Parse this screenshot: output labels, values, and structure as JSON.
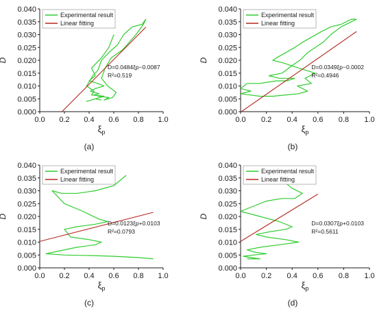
{
  "figure": {
    "legend_experimental": "Experimental result",
    "legend_linear": "Linear fitting",
    "colors": {
      "experimental": "#2ecc2e",
      "linear": "#b3261e",
      "axis": "#1a1a1a"
    }
  },
  "chart_data": [
    {
      "panel_label": "(a)",
      "type": "line",
      "xlabel": "ξp",
      "ylabel": "D",
      "xlim": [
        0.0,
        1.0
      ],
      "ylim": [
        0.0,
        0.04
      ],
      "xticks": [
        "0.0",
        "0.2",
        "0.4",
        "0.6",
        "0.8",
        "1.0"
      ],
      "yticks": [
        "0.000",
        "0.005",
        "0.010",
        "0.015",
        "0.020",
        "0.025",
        "0.030",
        "0.035",
        "0.040"
      ],
      "legend": "top-left",
      "equation": "D=0.0484ξp−0.0087",
      "r2": "R²=0.519",
      "series": [
        {
          "name": "Experimental result",
          "x": [
            0.6,
            0.56,
            0.5,
            0.42,
            0.45,
            0.4,
            0.47,
            0.52,
            0.45,
            0.41,
            0.48,
            0.44,
            0.48,
            0.56,
            0.52,
            0.59,
            0.62,
            0.55,
            0.5,
            0.53,
            0.58,
            0.67,
            0.78,
            0.84,
            0.86,
            0.83,
            0.75,
            0.68,
            0.63,
            0.56,
            0.5,
            0.47,
            0.43,
            0.38,
            0.44,
            0.42,
            0.52,
            0.45,
            0.38,
            0.45,
            0.5
          ],
          "y": [
            0.03,
            0.025,
            0.021,
            0.017,
            0.014,
            0.012,
            0.011,
            0.01,
            0.009,
            0.008,
            0.007,
            0.0065,
            0.006,
            0.0055,
            0.0045,
            0.0055,
            0.0075,
            0.01,
            0.013,
            0.017,
            0.021,
            0.024,
            0.03,
            0.034,
            0.036,
            0.034,
            0.033,
            0.03,
            0.026,
            0.023,
            0.02,
            0.016,
            0.014,
            0.01,
            0.008,
            0.0065,
            0.006,
            0.005,
            0.004,
            0.005,
            0.0045
          ]
        },
        {
          "name": "Linear fitting",
          "x": [
            0.18,
            0.86
          ],
          "y": [
            0.0,
            0.0329
          ]
        }
      ]
    },
    {
      "panel_label": "(b)",
      "type": "line",
      "xlabel": "ξp",
      "ylabel": "D",
      "xlim": [
        0.0,
        1.0
      ],
      "ylim": [
        0.0,
        0.04
      ],
      "xticks": [
        "0.0",
        "0.2",
        "0.4",
        "0.6",
        "0.8",
        "1.0"
      ],
      "yticks": [
        "0.000",
        "0.005",
        "0.010",
        "0.015",
        "0.020",
        "0.025",
        "0.030",
        "0.035",
        "0.040"
      ],
      "legend": "top-left",
      "equation": "D=0.0349ξp−0.0002",
      "r2": "R²=0.4946",
      "series": [
        {
          "name": "Experimental result",
          "x": [
            0.9,
            0.86,
            0.78,
            0.7,
            0.64,
            0.58,
            0.52,
            0.46,
            0.4,
            0.35,
            0.32,
            0.22,
            0.3,
            0.42,
            0.36,
            0.28,
            0.15,
            0.05,
            0.0,
            0.08,
            0.0,
            0.15,
            0.25,
            0.35,
            0.45,
            0.52,
            0.44,
            0.55,
            0.5,
            0.58,
            0.45,
            0.33,
            0.25,
            0.28,
            0.35,
            0.42,
            0.48,
            0.55,
            0.62,
            0.7,
            0.78,
            0.86,
            0.9
          ],
          "y": [
            0.036,
            0.035,
            0.033,
            0.03,
            0.027,
            0.025,
            0.023,
            0.02,
            0.018,
            0.016,
            0.015,
            0.014,
            0.013,
            0.013,
            0.012,
            0.012,
            0.011,
            0.011,
            0.009,
            0.008,
            0.007,
            0.006,
            0.006,
            0.0065,
            0.007,
            0.008,
            0.01,
            0.011,
            0.013,
            0.015,
            0.017,
            0.019,
            0.02,
            0.021,
            0.023,
            0.025,
            0.027,
            0.029,
            0.031,
            0.033,
            0.034,
            0.036,
            0.036
          ]
        },
        {
          "name": "Linear fitting",
          "x": [
            0.0,
            0.9
          ],
          "y": [
            -0.0002,
            0.0312
          ]
        }
      ]
    },
    {
      "panel_label": "(c)",
      "type": "line",
      "xlabel": "ξp",
      "ylabel": "D",
      "xlim": [
        0.0,
        1.0
      ],
      "ylim": [
        0.0,
        0.04
      ],
      "xticks": [
        "0.0",
        "0.2",
        "0.4",
        "0.6",
        "0.8",
        "1.0"
      ],
      "yticks": [
        "0.000",
        "0.005",
        "0.010",
        "0.015",
        "0.020",
        "0.025",
        "0.030",
        "0.035",
        "0.040"
      ],
      "legend": "top-left",
      "equation": "D=0.0123ξp+0.0103",
      "r2": "R²=0.0793",
      "series": [
        {
          "name": "Experimental result",
          "x": [
            0.7,
            0.6,
            0.45,
            0.3,
            0.18,
            0.1,
            0.2,
            0.35,
            0.48,
            0.55,
            0.45,
            0.3,
            0.2,
            0.25,
            0.4,
            0.5,
            0.45,
            0.3,
            0.15,
            0.05,
            0.2,
            0.4,
            0.6,
            0.8,
            0.92
          ],
          "y": [
            0.036,
            0.032,
            0.03,
            0.029,
            0.029,
            0.03,
            0.025,
            0.022,
            0.019,
            0.018,
            0.017,
            0.016,
            0.015,
            0.012,
            0.011,
            0.01,
            0.009,
            0.008,
            0.0065,
            0.0055,
            0.005,
            0.0048,
            0.0045,
            0.004,
            0.0035
          ]
        },
        {
          "name": "Linear fitting",
          "x": [
            0.0,
            0.92
          ],
          "y": [
            0.0103,
            0.0216
          ]
        }
      ]
    },
    {
      "panel_label": "(d)",
      "type": "line",
      "xlabel": "ξp",
      "ylabel": "D",
      "xlim": [
        0.0,
        1.0
      ],
      "ylim": [
        0.0,
        0.04
      ],
      "xticks": [
        "0.0",
        "0.2",
        "0.4",
        "0.6",
        "0.8",
        "1.0"
      ],
      "yticks": [
        "0.000",
        "0.005",
        "0.010",
        "0.015",
        "0.020",
        "0.025",
        "0.030",
        "0.035",
        "0.040"
      ],
      "legend": "top-left",
      "equation": "D=0.0307ξp+0.0103",
      "r2": "R²=0.5611",
      "series": [
        {
          "name": "Experimental result",
          "x": [
            0.5,
            0.4,
            0.35,
            0.4,
            0.48,
            0.42,
            0.32,
            0.2,
            0.1,
            0.0,
            0.15,
            0.3,
            0.4,
            0.35,
            0.22,
            0.12,
            0.2,
            0.35,
            0.45,
            0.3,
            0.15,
            0.05,
            0.12,
            0.2,
            0.1,
            0.02,
            0.08,
            0.15,
            0.05
          ],
          "y": [
            0.036,
            0.035,
            0.033,
            0.031,
            0.029,
            0.027,
            0.027,
            0.026,
            0.024,
            0.022,
            0.02,
            0.018,
            0.016,
            0.015,
            0.014,
            0.013,
            0.012,
            0.011,
            0.01,
            0.009,
            0.008,
            0.007,
            0.006,
            0.0055,
            0.005,
            0.0045,
            0.004,
            0.0035,
            0.0035
          ]
        },
        {
          "name": "Linear fitting",
          "x": [
            0.0,
            0.6
          ],
          "y": [
            0.0103,
            0.0287
          ]
        }
      ]
    }
  ]
}
